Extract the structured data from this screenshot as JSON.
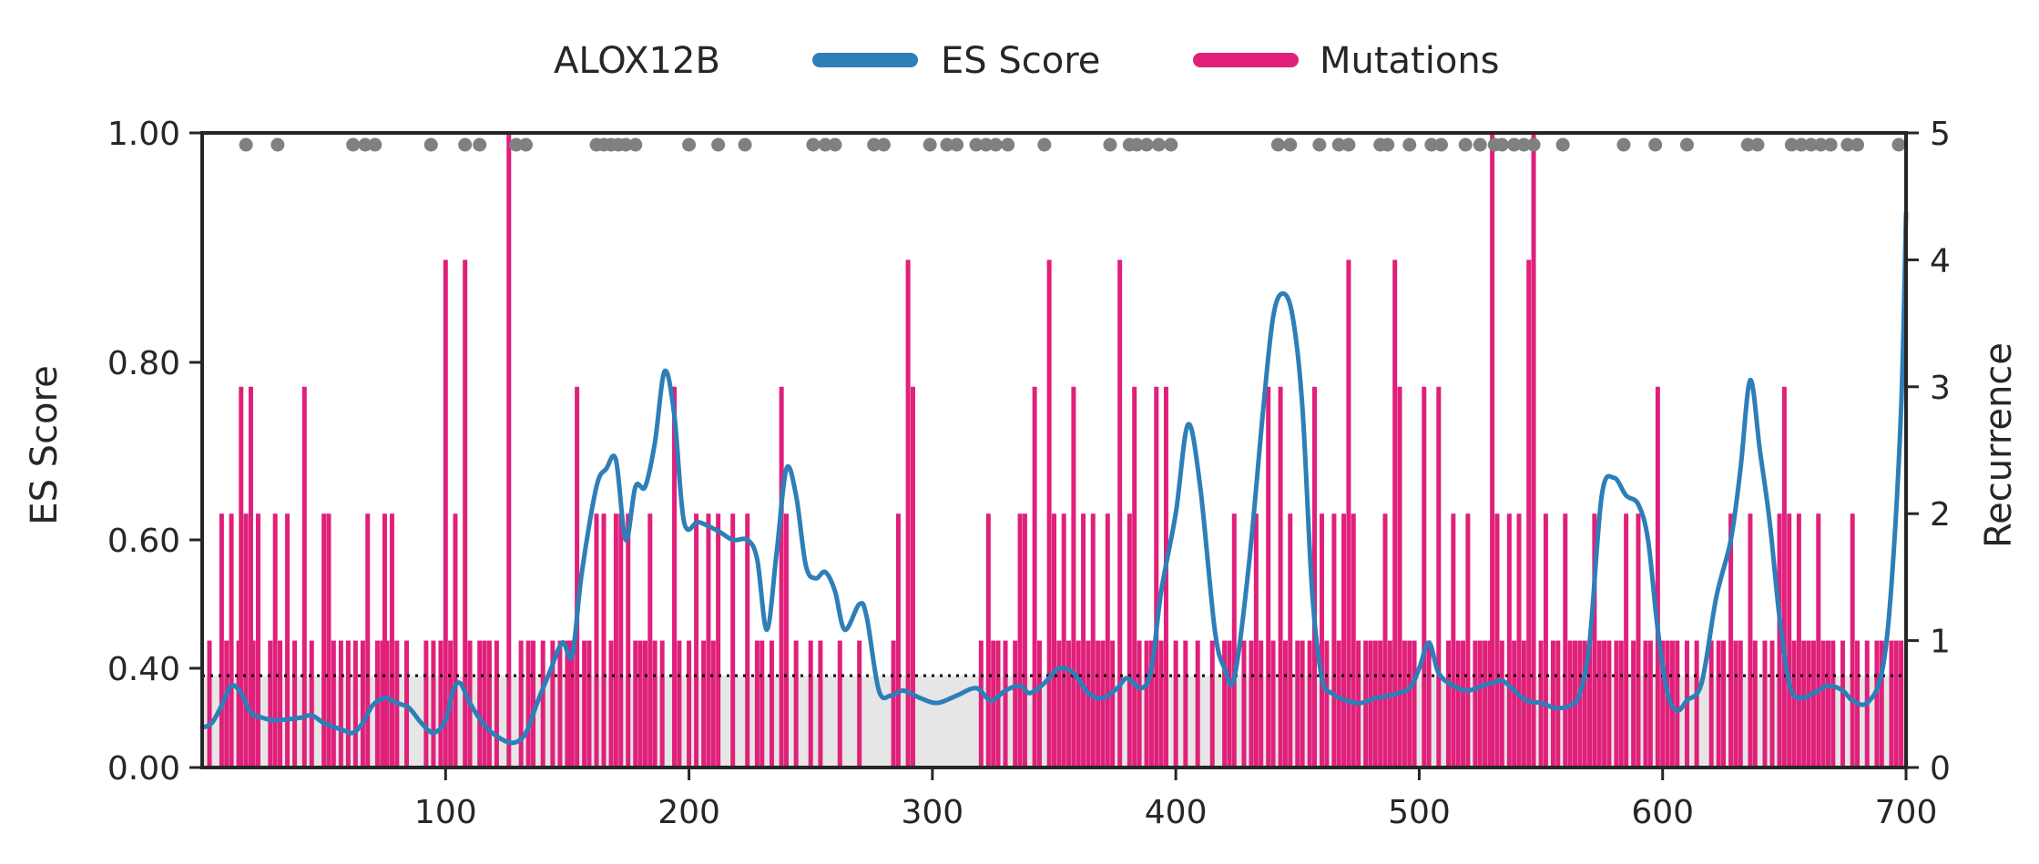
{
  "legend": {
    "title": "ALOX12B",
    "es_label": "ES Score",
    "mut_label": "Mutations"
  },
  "colors": {
    "es": "#2e7eb8",
    "mutations": "#e0207a",
    "dots": "#808080",
    "shade": "#e6e6e6",
    "axis": "#262626"
  },
  "chart_data": {
    "type": "line",
    "xlabel": "",
    "ylabel": "ES Score",
    "y2label": "Recurrence",
    "xlim": [
      0,
      700
    ],
    "ylim": [
      0,
      1
    ],
    "y2lim": [
      0,
      5
    ],
    "threshold": 0.37,
    "x_ticks": [
      100,
      200,
      300,
      400,
      500,
      600,
      700
    ],
    "y_ticks": [
      {
        "value": 0.0,
        "label": "0.00"
      },
      {
        "value": 0.4,
        "label": "0.40"
      },
      {
        "value": 0.6,
        "label": "0.60"
      },
      {
        "value": 0.8,
        "label": "0.80"
      },
      {
        "value": 1.0,
        "label": "1.00"
      }
    ],
    "y2_ticks": [
      0,
      1,
      2,
      3,
      4,
      5
    ],
    "es_series": [
      [
        0,
        0.16
      ],
      [
        4,
        0.18
      ],
      [
        8,
        0.25
      ],
      [
        12,
        0.33
      ],
      [
        16,
        0.3
      ],
      [
        20,
        0.22
      ],
      [
        25,
        0.2
      ],
      [
        30,
        0.19
      ],
      [
        40,
        0.2
      ],
      [
        45,
        0.21
      ],
      [
        50,
        0.18
      ],
      [
        58,
        0.15
      ],
      [
        62,
        0.14
      ],
      [
        66,
        0.18
      ],
      [
        70,
        0.25
      ],
      [
        75,
        0.28
      ],
      [
        80,
        0.26
      ],
      [
        85,
        0.24
      ],
      [
        90,
        0.18
      ],
      [
        95,
        0.14
      ],
      [
        100,
        0.19
      ],
      [
        103,
        0.31
      ],
      [
        106,
        0.34
      ],
      [
        110,
        0.26
      ],
      [
        116,
        0.17
      ],
      [
        122,
        0.12
      ],
      [
        128,
        0.1
      ],
      [
        133,
        0.14
      ],
      [
        138,
        0.27
      ],
      [
        143,
        0.39
      ],
      [
        148,
        0.44
      ],
      [
        152,
        0.42
      ],
      [
        156,
        0.55
      ],
      [
        162,
        0.66
      ],
      [
        166,
        0.68
      ],
      [
        170,
        0.69
      ],
      [
        174,
        0.6
      ],
      [
        178,
        0.66
      ],
      [
        182,
        0.66
      ],
      [
        186,
        0.71
      ],
      [
        190,
        0.79
      ],
      [
        194,
        0.74
      ],
      [
        198,
        0.62
      ],
      [
        204,
        0.62
      ],
      [
        212,
        0.61
      ],
      [
        218,
        0.6
      ],
      [
        224,
        0.6
      ],
      [
        228,
        0.57
      ],
      [
        232,
        0.46
      ],
      [
        236,
        0.58
      ],
      [
        240,
        0.68
      ],
      [
        244,
        0.65
      ],
      [
        248,
        0.56
      ],
      [
        252,
        0.54
      ],
      [
        256,
        0.55
      ],
      [
        260,
        0.52
      ],
      [
        264,
        0.46
      ],
      [
        270,
        0.5
      ],
      [
        273,
        0.48
      ],
      [
        278,
        0.31
      ],
      [
        283,
        0.29
      ],
      [
        288,
        0.31
      ],
      [
        295,
        0.28
      ],
      [
        302,
        0.26
      ],
      [
        310,
        0.29
      ],
      [
        318,
        0.32
      ],
      [
        324,
        0.27
      ],
      [
        330,
        0.31
      ],
      [
        336,
        0.33
      ],
      [
        340,
        0.3
      ],
      [
        346,
        0.34
      ],
      [
        352,
        0.4
      ],
      [
        358,
        0.38
      ],
      [
        364,
        0.3
      ],
      [
        370,
        0.28
      ],
      [
        376,
        0.32
      ],
      [
        380,
        0.36
      ],
      [
        386,
        0.32
      ],
      [
        390,
        0.4
      ],
      [
        394,
        0.52
      ],
      [
        400,
        0.63
      ],
      [
        405,
        0.73
      ],
      [
        410,
        0.66
      ],
      [
        416,
        0.46
      ],
      [
        420,
        0.4
      ],
      [
        424,
        0.36
      ],
      [
        430,
        0.56
      ],
      [
        436,
        0.75
      ],
      [
        440,
        0.84
      ],
      [
        444,
        0.86
      ],
      [
        448,
        0.84
      ],
      [
        452,
        0.75
      ],
      [
        456,
        0.52
      ],
      [
        460,
        0.36
      ],
      [
        464,
        0.3
      ],
      [
        470,
        0.27
      ],
      [
        476,
        0.26
      ],
      [
        482,
        0.28
      ],
      [
        488,
        0.29
      ],
      [
        496,
        0.32
      ],
      [
        500,
        0.4
      ],
      [
        504,
        0.44
      ],
      [
        508,
        0.38
      ],
      [
        514,
        0.33
      ],
      [
        520,
        0.31
      ],
      [
        526,
        0.33
      ],
      [
        530,
        0.34
      ],
      [
        534,
        0.35
      ],
      [
        538,
        0.32
      ],
      [
        544,
        0.27
      ],
      [
        550,
        0.26
      ],
      [
        556,
        0.24
      ],
      [
        562,
        0.25
      ],
      [
        566,
        0.3
      ],
      [
        570,
        0.44
      ],
      [
        575,
        0.65
      ],
      [
        580,
        0.67
      ],
      [
        585,
        0.65
      ],
      [
        590,
        0.64
      ],
      [
        594,
        0.6
      ],
      [
        598,
        0.46
      ],
      [
        602,
        0.3
      ],
      [
        606,
        0.23
      ],
      [
        610,
        0.27
      ],
      [
        616,
        0.34
      ],
      [
        622,
        0.51
      ],
      [
        628,
        0.6
      ],
      [
        632,
        0.68
      ],
      [
        636,
        0.78
      ],
      [
        640,
        0.7
      ],
      [
        644,
        0.62
      ],
      [
        648,
        0.48
      ],
      [
        652,
        0.34
      ],
      [
        656,
        0.28
      ],
      [
        662,
        0.3
      ],
      [
        668,
        0.33
      ],
      [
        674,
        0.31
      ],
      [
        678,
        0.27
      ],
      [
        684,
        0.26
      ],
      [
        690,
        0.38
      ],
      [
        694,
        0.53
      ],
      [
        698,
        0.75
      ],
      [
        700,
        0.93
      ]
    ],
    "mutations": [
      [
        3,
        1
      ],
      [
        8,
        2
      ],
      [
        10,
        1
      ],
      [
        12,
        2
      ],
      [
        15,
        1
      ],
      [
        16,
        3
      ],
      [
        18,
        2
      ],
      [
        20,
        3
      ],
      [
        21,
        1
      ],
      [
        23,
        2
      ],
      [
        28,
        1
      ],
      [
        30,
        2
      ],
      [
        32,
        1
      ],
      [
        35,
        2
      ],
      [
        38,
        1
      ],
      [
        42,
        3
      ],
      [
        45,
        1
      ],
      [
        50,
        2
      ],
      [
        52,
        2
      ],
      [
        54,
        1
      ],
      [
        57,
        1
      ],
      [
        60,
        1
      ],
      [
        63,
        1
      ],
      [
        66,
        1
      ],
      [
        68,
        2
      ],
      [
        72,
        1
      ],
      [
        74,
        1
      ],
      [
        75,
        2
      ],
      [
        76,
        1
      ],
      [
        78,
        2
      ],
      [
        80,
        1
      ],
      [
        84,
        1
      ],
      [
        92,
        1
      ],
      [
        95,
        1
      ],
      [
        98,
        1
      ],
      [
        100,
        4
      ],
      [
        102,
        1
      ],
      [
        104,
        2
      ],
      [
        108,
        4
      ],
      [
        110,
        1
      ],
      [
        114,
        1
      ],
      [
        116,
        1
      ],
      [
        118,
        1
      ],
      [
        121,
        1
      ],
      [
        126,
        5
      ],
      [
        131,
        1
      ],
      [
        134,
        1
      ],
      [
        136,
        1
      ],
      [
        140,
        1
      ],
      [
        144,
        1
      ],
      [
        147,
        1
      ],
      [
        150,
        1
      ],
      [
        151,
        1
      ],
      [
        152,
        1
      ],
      [
        154,
        3
      ],
      [
        157,
        1
      ],
      [
        159,
        1
      ],
      [
        162,
        2
      ],
      [
        165,
        2
      ],
      [
        168,
        1
      ],
      [
        170,
        2
      ],
      [
        172,
        2
      ],
      [
        175,
        2
      ],
      [
        178,
        1
      ],
      [
        180,
        1
      ],
      [
        182,
        1
      ],
      [
        184,
        2
      ],
      [
        186,
        1
      ],
      [
        189,
        1
      ],
      [
        194,
        3
      ],
      [
        196,
        1
      ],
      [
        200,
        1
      ],
      [
        203,
        2
      ],
      [
        206,
        1
      ],
      [
        208,
        2
      ],
      [
        210,
        1
      ],
      [
        212,
        2
      ],
      [
        218,
        2
      ],
      [
        224,
        2
      ],
      [
        228,
        1
      ],
      [
        230,
        1
      ],
      [
        234,
        1
      ],
      [
        238,
        3
      ],
      [
        240,
        2
      ],
      [
        244,
        1
      ],
      [
        250,
        1
      ],
      [
        254,
        1
      ],
      [
        262,
        1
      ],
      [
        270,
        1
      ],
      [
        284,
        1
      ],
      [
        286,
        2
      ],
      [
        290,
        4
      ],
      [
        292,
        3
      ],
      [
        320,
        1
      ],
      [
        323,
        2
      ],
      [
        325,
        1
      ],
      [
        327,
        1
      ],
      [
        330,
        1
      ],
      [
        334,
        1
      ],
      [
        336,
        2
      ],
      [
        338,
        2
      ],
      [
        342,
        3
      ],
      [
        344,
        1
      ],
      [
        348,
        4
      ],
      [
        350,
        2
      ],
      [
        352,
        1
      ],
      [
        354,
        2
      ],
      [
        356,
        1
      ],
      [
        358,
        3
      ],
      [
        360,
        1
      ],
      [
        362,
        2
      ],
      [
        364,
        1
      ],
      [
        366,
        2
      ],
      [
        368,
        1
      ],
      [
        370,
        1
      ],
      [
        372,
        2
      ],
      [
        374,
        1
      ],
      [
        377,
        4
      ],
      [
        381,
        2
      ],
      [
        383,
        3
      ],
      [
        385,
        1
      ],
      [
        388,
        1
      ],
      [
        390,
        1
      ],
      [
        392,
        3
      ],
      [
        394,
        1
      ],
      [
        396,
        3
      ],
      [
        400,
        1
      ],
      [
        404,
        1
      ],
      [
        409,
        1
      ],
      [
        415,
        1
      ],
      [
        420,
        1
      ],
      [
        422,
        1
      ],
      [
        424,
        2
      ],
      [
        428,
        1
      ],
      [
        431,
        1
      ],
      [
        433,
        2
      ],
      [
        435,
        1
      ],
      [
        438,
        3
      ],
      [
        440,
        1
      ],
      [
        443,
        3
      ],
      [
        445,
        1
      ],
      [
        447,
        2
      ],
      [
        450,
        1
      ],
      [
        452,
        1
      ],
      [
        455,
        1
      ],
      [
        457,
        3
      ],
      [
        460,
        2
      ],
      [
        462,
        1
      ],
      [
        465,
        2
      ],
      [
        467,
        1
      ],
      [
        469,
        2
      ],
      [
        471,
        4
      ],
      [
        473,
        2
      ],
      [
        475,
        1
      ],
      [
        478,
        1
      ],
      [
        480,
        1
      ],
      [
        482,
        1
      ],
      [
        484,
        1
      ],
      [
        486,
        2
      ],
      [
        488,
        1
      ],
      [
        490,
        4
      ],
      [
        492,
        3
      ],
      [
        494,
        1
      ],
      [
        496,
        1
      ],
      [
        498,
        1
      ],
      [
        502,
        3
      ],
      [
        504,
        1
      ],
      [
        508,
        3
      ],
      [
        512,
        1
      ],
      [
        514,
        2
      ],
      [
        516,
        1
      ],
      [
        518,
        1
      ],
      [
        520,
        2
      ],
      [
        523,
        1
      ],
      [
        525,
        1
      ],
      [
        527,
        1
      ],
      [
        529,
        1
      ],
      [
        530,
        5
      ],
      [
        532,
        2
      ],
      [
        534,
        1
      ],
      [
        537,
        2
      ],
      [
        539,
        1
      ],
      [
        541,
        2
      ],
      [
        543,
        1
      ],
      [
        545,
        4
      ],
      [
        547,
        5
      ],
      [
        550,
        1
      ],
      [
        552,
        2
      ],
      [
        555,
        1
      ],
      [
        557,
        1
      ],
      [
        560,
        2
      ],
      [
        562,
        1
      ],
      [
        564,
        1
      ],
      [
        566,
        1
      ],
      [
        568,
        1
      ],
      [
        570,
        1
      ],
      [
        572,
        2
      ],
      [
        574,
        1
      ],
      [
        576,
        1
      ],
      [
        578,
        1
      ],
      [
        581,
        1
      ],
      [
        583,
        1
      ],
      [
        585,
        2
      ],
      [
        588,
        1
      ],
      [
        590,
        2
      ],
      [
        593,
        1
      ],
      [
        595,
        1
      ],
      [
        598,
        3
      ],
      [
        600,
        1
      ],
      [
        602,
        1
      ],
      [
        604,
        1
      ],
      [
        606,
        1
      ],
      [
        610,
        1
      ],
      [
        614,
        1
      ],
      [
        620,
        1
      ],
      [
        623,
        1
      ],
      [
        625,
        1
      ],
      [
        628,
        2
      ],
      [
        630,
        1
      ],
      [
        632,
        1
      ],
      [
        636,
        2
      ],
      [
        638,
        1
      ],
      [
        642,
        1
      ],
      [
        645,
        1
      ],
      [
        648,
        2
      ],
      [
        650,
        3
      ],
      [
        652,
        2
      ],
      [
        654,
        1
      ],
      [
        656,
        2
      ],
      [
        658,
        1
      ],
      [
        660,
        1
      ],
      [
        662,
        1
      ],
      [
        664,
        2
      ],
      [
        666,
        1
      ],
      [
        668,
        1
      ],
      [
        670,
        1
      ],
      [
        674,
        1
      ],
      [
        678,
        2
      ],
      [
        680,
        1
      ],
      [
        684,
        1
      ],
      [
        688,
        1
      ],
      [
        690,
        1
      ],
      [
        694,
        1
      ],
      [
        696,
        1
      ],
      [
        698,
        1
      ]
    ],
    "dots": [
      18,
      31,
      62,
      67,
      71,
      94,
      108,
      114,
      129,
      133,
      162,
      165,
      168,
      171,
      174,
      178,
      200,
      212,
      223,
      251,
      256,
      260,
      276,
      280,
      299,
      306,
      310,
      318,
      322,
      326,
      331,
      346,
      373,
      381,
      384,
      388,
      393,
      398,
      442,
      447,
      459,
      467,
      471,
      484,
      487,
      496,
      505,
      509,
      519,
      525,
      531,
      534,
      539,
      543,
      547,
      559,
      584,
      597,
      610,
      635,
      639,
      653,
      657,
      661,
      665,
      669,
      676,
      680,
      697
    ]
  }
}
